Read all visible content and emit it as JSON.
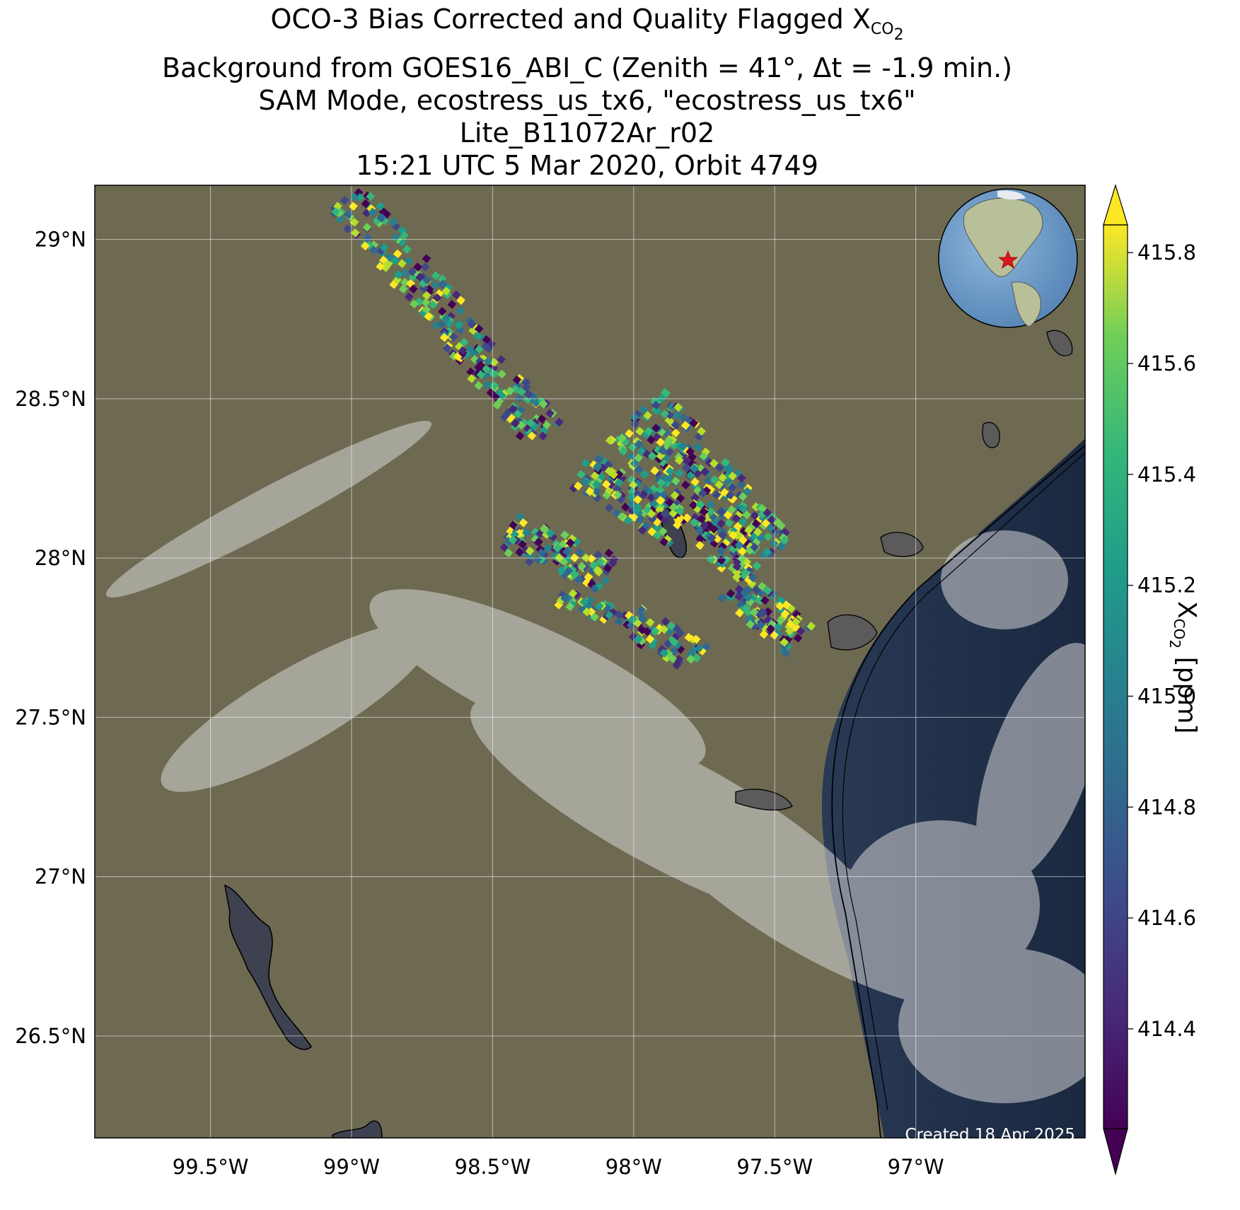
{
  "title": {
    "line1_main": "OCO-3 Bias Corrected and Quality Flagged X",
    "line1_sub": "CO",
    "line1_subsub": "2",
    "line2": "Background from GOES16_ABI_C (Zenith = 41°, Δt = -1.9 min.)",
    "line3": "SAM Mode, ecostress_us_tx6, \"ecostress_us_tx6\"",
    "line4": "Lite_B11072Ar_r02",
    "line5": "15:21 UTC 5 Mar 2020, Orbit 4749"
  },
  "map": {
    "lon_range": [
      -99.91,
      -96.4
    ],
    "lat_range": [
      26.18,
      29.17
    ],
    "lon_ticks": [
      {
        "value": -99.5,
        "label": "99.5°W"
      },
      {
        "value": -99.0,
        "label": "99°W"
      },
      {
        "value": -98.5,
        "label": "98.5°W"
      },
      {
        "value": -98.0,
        "label": "98°W"
      },
      {
        "value": -97.5,
        "label": "97.5°W"
      },
      {
        "value": -97.0,
        "label": "97°W"
      }
    ],
    "lat_ticks": [
      {
        "value": 29.0,
        "label": "29°N"
      },
      {
        "value": 28.5,
        "label": "28.5°N"
      },
      {
        "value": 28.0,
        "label": "28°N"
      },
      {
        "value": 27.5,
        "label": "27.5°N"
      },
      {
        "value": 27.0,
        "label": "27°N"
      },
      {
        "value": 26.5,
        "label": "26.5°N"
      }
    ],
    "target_marker_icon": "red-star-icon",
    "inset": "globe-locator-icon",
    "background_colors": {
      "land": "#6e6a52",
      "ocean": "#1e2d45",
      "cloud": "#d8d8d8"
    }
  },
  "colorbar": {
    "label_main": "X",
    "label_sub": "CO",
    "label_subsub": "2",
    "label_unit": " [ppm]",
    "cmap": "viridis",
    "vmin": 414.22,
    "vmax": 415.85,
    "ticks": [
      {
        "value": 414.4,
        "label": "414.4"
      },
      {
        "value": 414.6,
        "label": "414.6"
      },
      {
        "value": 414.8,
        "label": "414.8"
      },
      {
        "value": 415.0,
        "label": "415.0"
      },
      {
        "value": 415.2,
        "label": "415.2"
      },
      {
        "value": 415.4,
        "label": "415.4"
      },
      {
        "value": 415.6,
        "label": "415.6"
      },
      {
        "value": 415.8,
        "label": "415.8"
      }
    ]
  },
  "credit": "Created 18 Apr 2025"
}
